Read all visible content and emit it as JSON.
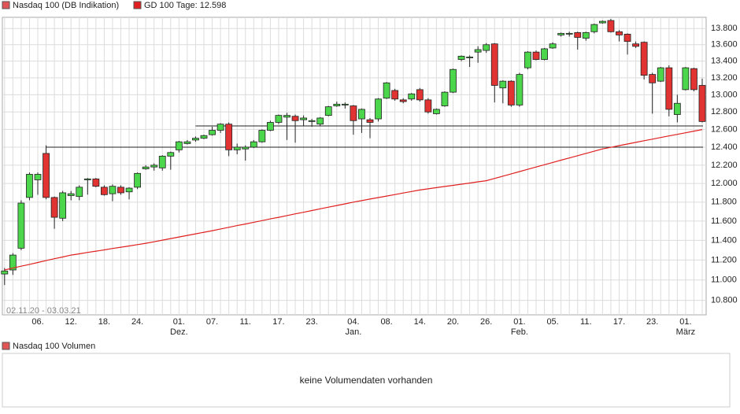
{
  "chart_data": {
    "type": "candlestick",
    "scale": "log",
    "grid": true,
    "date_range": "02.11.20 - 03.03.21",
    "up_color": "#4cd64c",
    "down_color": "#e23333",
    "categories": [
      null,
      null,
      null,
      null,
      "06.",
      null,
      null,
      null,
      "12.",
      null,
      null,
      null,
      "18.",
      null,
      null,
      null,
      "24.",
      null,
      null,
      null,
      null,
      "01.\nDez.",
      null,
      null,
      null,
      "07.",
      null,
      null,
      null,
      "11.",
      null,
      null,
      null,
      "17.",
      null,
      null,
      null,
      "23.",
      null,
      null,
      null,
      null,
      "04.\nJan.",
      null,
      null,
      null,
      "08.",
      null,
      null,
      null,
      "14.",
      null,
      null,
      null,
      "20.",
      null,
      null,
      null,
      "26.",
      null,
      null,
      null,
      "01.\nFeb.",
      null,
      null,
      null,
      "05.",
      null,
      null,
      null,
      "11.",
      null,
      null,
      null,
      "17.",
      null,
      null,
      null,
      "23.",
      null,
      null,
      null,
      "01.\nMärz",
      null,
      null
    ],
    "ylim": [
      10660,
      13940
    ],
    "yticks": [
      {
        "value": 10800,
        "label": "10.800"
      },
      {
        "value": 11000,
        "label": "11.000"
      },
      {
        "value": 11200,
        "label": "11.200"
      },
      {
        "value": 11400,
        "label": "11.400"
      },
      {
        "value": 11600,
        "label": "11.600"
      },
      {
        "value": 11800,
        "label": "11.800"
      },
      {
        "value": 12000,
        "label": "12.000"
      },
      {
        "value": 12200,
        "label": "12.200"
      },
      {
        "value": 12400,
        "label": "12.400"
      },
      {
        "value": 12600,
        "label": "12.600"
      },
      {
        "value": 12800,
        "label": "12.800"
      },
      {
        "value": 13000,
        "label": "13.000"
      },
      {
        "value": 13200,
        "label": "13.200"
      },
      {
        "value": 13400,
        "label": "13.400"
      },
      {
        "value": 13600,
        "label": "13.600"
      },
      {
        "value": 13800,
        "label": "13.800"
      }
    ],
    "series": [
      {
        "name": "Nasdaq 100 (DB Indikation)",
        "color": "#e05555",
        "open": [
          11060,
          11100,
          11320,
          11850,
          12040,
          12330,
          11850,
          11630,
          11870,
          11860,
          12040,
          12050,
          11960,
          11890,
          11960,
          11910,
          11960,
          12160,
          12180,
          12170,
          12300,
          12370,
          12440,
          12480,
          12500,
          12540,
          12590,
          12660,
          12370,
          12380,
          12400,
          12460,
          12590,
          12680,
          12740,
          12750,
          12710,
          12690,
          12660,
          12760,
          12870,
          12880,
          12870,
          12720,
          12710,
          12720,
          12960,
          13050,
          12940,
          12950,
          13060,
          12940,
          12780,
          12870,
          13030,
          13420,
          13440,
          13510,
          13530,
          13610,
          13080,
          13160,
          12880,
          13320,
          13510,
          13420,
          13560,
          13720,
          13730,
          13750,
          13680,
          13760,
          13870,
          13900,
          13760,
          13730,
          13610,
          13630,
          13240,
          13160,
          13320,
          12770,
          13060,
          13310,
          13110
        ],
        "high": [
          11120,
          11270,
          11820,
          12120,
          12120,
          12420,
          11860,
          11920,
          11920,
          11980,
          12060,
          12060,
          11980,
          11990,
          11980,
          11960,
          12120,
          12200,
          12220,
          12310,
          12350,
          12470,
          12480,
          12520,
          12540,
          12630,
          12670,
          12680,
          12440,
          12420,
          12480,
          12600,
          12700,
          12770,
          12790,
          12770,
          12760,
          12720,
          12740,
          12870,
          12920,
          12910,
          12880,
          12840,
          12730,
          12960,
          13150,
          13070,
          12960,
          13020,
          13080,
          12960,
          12840,
          13040,
          13310,
          13470,
          13470,
          13580,
          13620,
          13620,
          13170,
          13170,
          13260,
          13520,
          13530,
          13560,
          13630,
          13750,
          13760,
          13760,
          13760,
          13860,
          13900,
          13920,
          13780,
          13740,
          13640,
          13640,
          13260,
          13330,
          13350,
          13000,
          13330,
          13320,
          13190
        ],
        "low": [
          10950,
          11050,
          11300,
          11820,
          11880,
          11830,
          11520,
          11600,
          11820,
          11820,
          11880,
          11960,
          11870,
          11810,
          11880,
          11830,
          11940,
          12150,
          12140,
          12140,
          12150,
          12340,
          12430,
          12460,
          12490,
          12530,
          12560,
          12300,
          12320,
          12250,
          12390,
          12450,
          12580,
          12660,
          12480,
          12450,
          12640,
          12630,
          12640,
          12750,
          12860,
          12840,
          12540,
          12560,
          12500,
          12690,
          12950,
          12930,
          12900,
          12930,
          12920,
          12780,
          12770,
          12860,
          13020,
          13400,
          13330,
          13380,
          13500,
          12910,
          12900,
          12860,
          12860,
          13300,
          13410,
          13410,
          13550,
          13700,
          13700,
          13540,
          13650,
          13740,
          13860,
          13750,
          13640,
          13480,
          13560,
          13180,
          12780,
          13150,
          12750,
          12680,
          13050,
          13040,
          12680
        ],
        "close": [
          11090,
          11250,
          11790,
          12100,
          12100,
          11850,
          11640,
          11900,
          11890,
          11960,
          12050,
          11970,
          11880,
          11970,
          11900,
          11950,
          12110,
          12180,
          12200,
          12300,
          12340,
          12460,
          12460,
          12500,
          12530,
          12590,
          12660,
          12370,
          12400,
          12400,
          12460,
          12590,
          12680,
          12760,
          12760,
          12700,
          12730,
          12700,
          12730,
          12860,
          12890,
          12890,
          12700,
          12830,
          12680,
          12950,
          13140,
          12950,
          12920,
          13010,
          12940,
          12800,
          12830,
          13030,
          13300,
          13460,
          13450,
          13540,
          13600,
          13110,
          13160,
          12880,
          13240,
          13510,
          13420,
          13550,
          13610,
          13740,
          13740,
          13690,
          13750,
          13850,
          13890,
          13760,
          13720,
          13640,
          13580,
          13230,
          13140,
          13320,
          12830,
          12900,
          13320,
          13060,
          12690
        ]
      },
      {
        "name": "GD 100 Tage: 12.598",
        "color": "#e02020",
        "values": [
          11100,
          11119,
          11138,
          11156,
          11175,
          11194,
          11213,
          11231,
          11250,
          11263,
          11277,
          11290,
          11303,
          11317,
          11330,
          11343,
          11357,
          11370,
          11386,
          11403,
          11419,
          11435,
          11451,
          11468,
          11484,
          11500,
          11518,
          11535,
          11553,
          11570,
          11588,
          11605,
          11623,
          11640,
          11658,
          11676,
          11693,
          11711,
          11729,
          11747,
          11764,
          11782,
          11800,
          11816,
          11833,
          11849,
          11865,
          11881,
          11898,
          11914,
          11930,
          11943,
          11955,
          11968,
          11980,
          11993,
          12005,
          12018,
          12030,
          12055,
          12080,
          12105,
          12130,
          12155,
          12180,
          12205,
          12230,
          12255,
          12280,
          12305,
          12330,
          12355,
          12380,
          12398,
          12417,
          12435,
          12453,
          12472,
          12490,
          12508,
          12526,
          12544,
          12562,
          12580,
          12598
        ]
      }
    ],
    "reference_lines": [
      {
        "value": 12400,
        "from": 5
      },
      {
        "value": 12640,
        "from": 23
      }
    ],
    "volume_panel": {
      "legend": "Nasdaq 100 Volumen",
      "message": "keine Volumendaten vorhanden"
    }
  }
}
